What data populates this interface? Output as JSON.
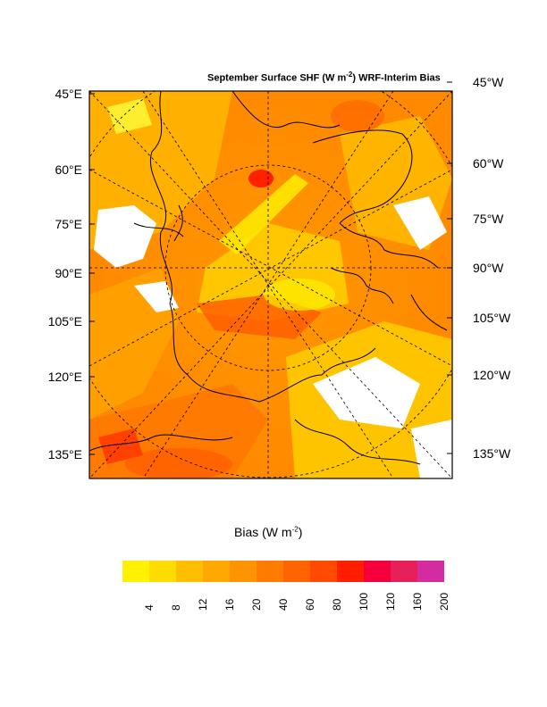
{
  "title": {
    "pre": "September Surface SHF (W m",
    "sup": "-2",
    "post": ") WRF-Interim Bias"
  },
  "left_labels": [
    "45°E",
    "60°E",
    "75°E",
    "90°E",
    "105°E",
    "120°E",
    "135°E"
  ],
  "right_labels": [
    "45°W",
    "60°W",
    "75°W",
    "90°W",
    "105°W",
    "120°W",
    "135°W"
  ],
  "colorbar": {
    "title_pre": "Bias (W m",
    "title_sup": "-2",
    "title_post": ")",
    "ticks": [
      "4",
      "8",
      "12",
      "16",
      "20",
      "40",
      "60",
      "80",
      "100",
      "120",
      "160",
      "200"
    ],
    "colors": [
      "#fff200",
      "#ffdc00",
      "#ffbe00",
      "#ffa800",
      "#ff9400",
      "#ff7c00",
      "#ff6400",
      "#ff4a00",
      "#ff1e00",
      "#f5003c",
      "#e8205a",
      "#d22ca0"
    ]
  }
}
